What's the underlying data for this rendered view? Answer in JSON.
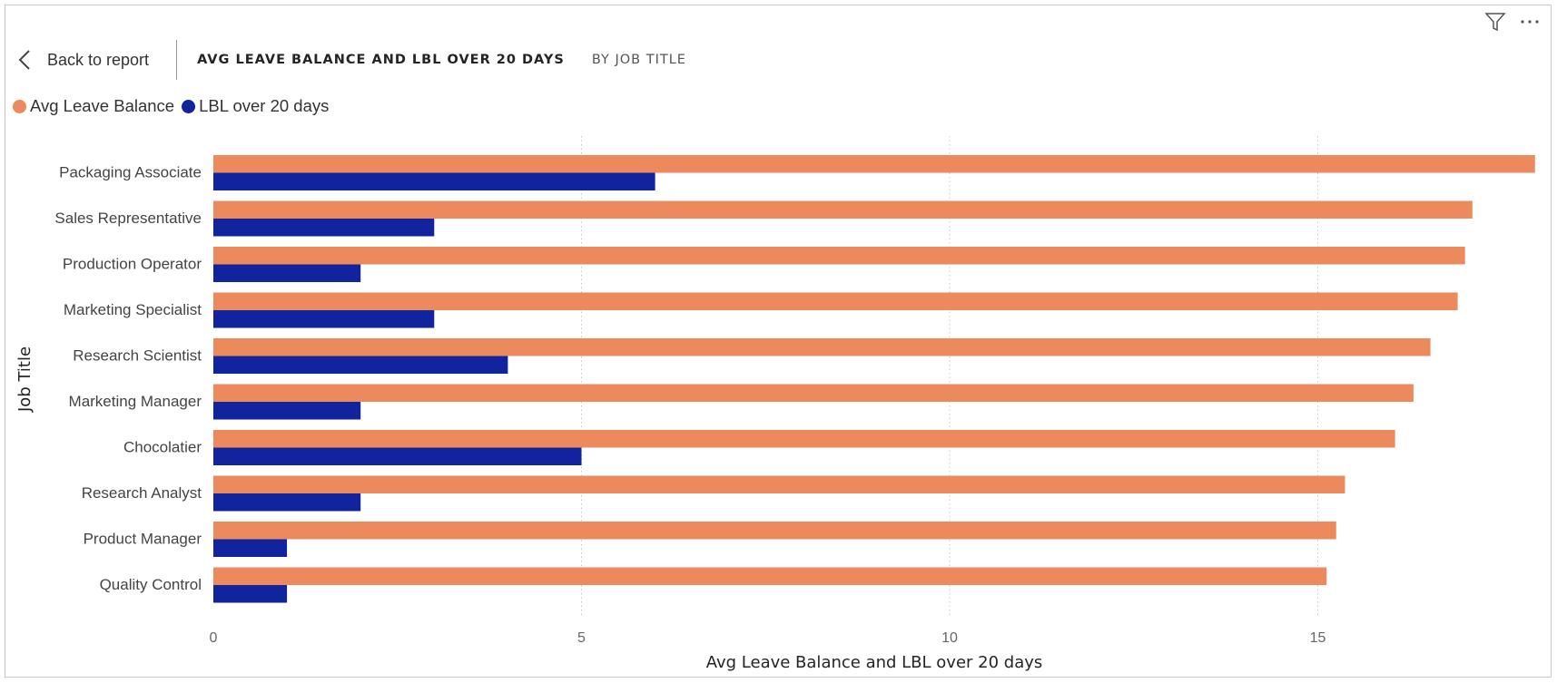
{
  "header": {
    "back_label": "Back to report",
    "title": "AVG LEAVE BALANCE AND LBL OVER 20 DAYS",
    "subtitle": "BY JOB TITLE"
  },
  "icons": {
    "back": "chevron-left-icon",
    "filter": "filter-icon",
    "more": "more-options-icon"
  },
  "colors": {
    "avg_leave_balance": "#EC8A5E",
    "lbl_over_20_days": "#12239E",
    "gridline": "#c8c8c8"
  },
  "chart_data": {
    "type": "bar",
    "orientation": "horizontal",
    "categories": [
      "Packaging Associate",
      "Sales Representative",
      "Production Operator",
      "Marketing Specialist",
      "Research Scientist",
      "Marketing Manager",
      "Chocolatier",
      "Research Analyst",
      "Product Manager",
      "Quality Control"
    ],
    "series": [
      {
        "name": "Avg Leave Balance",
        "color": "#EC8A5E",
        "values": [
          17.95,
          17.1,
          17.0,
          16.9,
          16.53,
          16.3,
          16.05,
          15.37,
          15.25,
          15.12
        ]
      },
      {
        "name": "LBL over 20 days",
        "color": "#12239E",
        "values": [
          6,
          3,
          2,
          3,
          4,
          2,
          5,
          2,
          1,
          1
        ]
      }
    ],
    "xlabel": "Avg Leave Balance and LBL over 20 days",
    "ylabel": "Job Title",
    "xlim": [
      0,
      18
    ],
    "xticks": [
      0,
      5,
      10,
      15
    ],
    "grid": true,
    "legend_position": "top-left"
  }
}
